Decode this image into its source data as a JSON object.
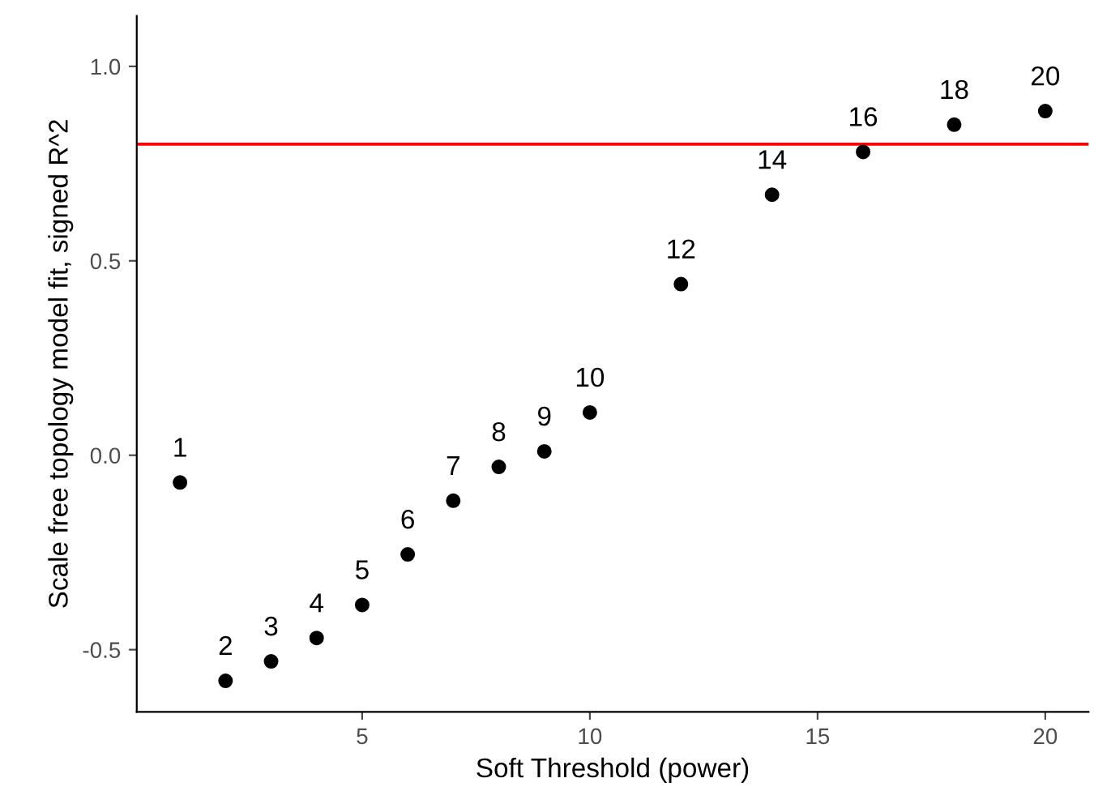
{
  "chart_data": {
    "type": "scatter",
    "xlabel": "Soft Threshold (power)",
    "ylabel": "Scale free topology model fit, signed R^2",
    "x": [
      1,
      2,
      3,
      4,
      5,
      6,
      7,
      8,
      9,
      10,
      12,
      14,
      16,
      18,
      20
    ],
    "series": [
      {
        "color": "#000000",
        "values": [
          -0.07,
          -0.58,
          -0.53,
          -0.47,
          -0.385,
          -0.255,
          -0.117,
          -0.03,
          0.01,
          0.11,
          0.44,
          0.67,
          0.78,
          0.85,
          0.885
        ]
      }
    ],
    "annotations": [
      {
        "text": "1",
        "x": 1,
        "y": -0.07
      },
      {
        "text": "2",
        "x": 2,
        "y": -0.58
      },
      {
        "text": "3",
        "x": 3,
        "y": -0.53
      },
      {
        "text": "4",
        "x": 4,
        "y": -0.47
      },
      {
        "text": "5",
        "x": 5,
        "y": -0.385
      },
      {
        "text": "6",
        "x": 6,
        "y": -0.255
      },
      {
        "text": "7",
        "x": 7,
        "y": -0.117
      },
      {
        "text": "8",
        "x": 8,
        "y": -0.03
      },
      {
        "text": "9",
        "x": 9,
        "y": 0.01
      },
      {
        "text": "10",
        "x": 10,
        "y": 0.11
      },
      {
        "text": "12",
        "x": 12,
        "y": 0.44
      },
      {
        "text": "14",
        "x": 14,
        "y": 0.67
      },
      {
        "text": "16",
        "x": 16,
        "y": 0.78
      },
      {
        "text": "18",
        "x": 18,
        "y": 0.85
      },
      {
        "text": "20",
        "x": 20,
        "y": 0.885
      }
    ],
    "ref_lines": [
      {
        "axis": "y",
        "value": 0.8,
        "color": "#ff0000"
      }
    ],
    "xlim": [
      0.05,
      20.95
    ],
    "ylim": [
      -0.66,
      1.13
    ],
    "xticks": [
      5,
      10,
      15,
      20
    ],
    "yticks": [
      {
        "value": -0.5,
        "label": "-0.5"
      },
      {
        "value": 0,
        "label": "0.0"
      },
      {
        "value": 0.5,
        "label": "0.5"
      },
      {
        "value": 1,
        "label": "1.0"
      }
    ],
    "grid": false,
    "marker": "circle"
  }
}
